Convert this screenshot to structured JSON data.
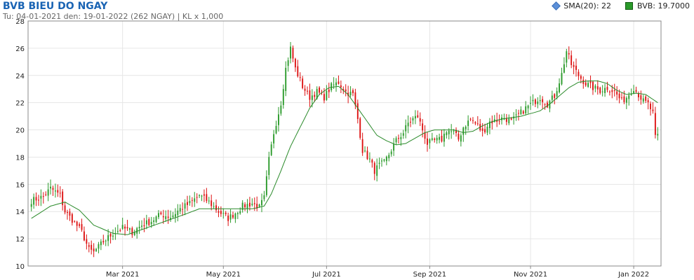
{
  "header": {
    "title": "BVB BIEU DO NGAY",
    "subtitle": "Tu: 04-01-2021 den: 19-01-2022 (262 NGAY) | KL x 1,000"
  },
  "legend": {
    "sma_label": "SMA(20): 22",
    "price_label": "BVB: 19.7000"
  },
  "colors": {
    "up": "#2a9a2a",
    "down": "#dd1111",
    "sma": "#2a8a2a",
    "grid": "#e6e6e6",
    "title": "#1a64b4"
  },
  "chart_data": {
    "type": "candlestick",
    "x_label": "",
    "y_label": "",
    "ylim": [
      10,
      28
    ],
    "yticks": [
      "10",
      "12",
      "14",
      "16",
      "18",
      "20",
      "22",
      "24",
      "26",
      "28"
    ],
    "xticks": [
      {
        "label": "Mar 2021",
        "index": 38
      },
      {
        "label": "May 2021",
        "index": 80
      },
      {
        "label": "Jul 2021",
        "index": 123
      },
      {
        "label": "Sep 2021",
        "index": 166
      },
      {
        "label": "Nov 2021",
        "index": 208
      },
      {
        "label": "Jan 2022",
        "index": 251
      }
    ],
    "n_days": 262,
    "close_anchors": [
      [
        0,
        14.8
      ],
      [
        5,
        15.1
      ],
      [
        8,
        15.7
      ],
      [
        12,
        15.2
      ],
      [
        14,
        14.0
      ],
      [
        18,
        13.2
      ],
      [
        21,
        12.5
      ],
      [
        24,
        11.2
      ],
      [
        26,
        11.0
      ],
      [
        30,
        11.8
      ],
      [
        34,
        12.4
      ],
      [
        38,
        12.8
      ],
      [
        42,
        12.5
      ],
      [
        46,
        13.0
      ],
      [
        50,
        13.3
      ],
      [
        54,
        13.8
      ],
      [
        58,
        13.6
      ],
      [
        62,
        14.2
      ],
      [
        66,
        14.6
      ],
      [
        70,
        15.2
      ],
      [
        74,
        14.7
      ],
      [
        78,
        14.0
      ],
      [
        82,
        13.5
      ],
      [
        85,
        13.9
      ],
      [
        88,
        14.4
      ],
      [
        92,
        14.6
      ],
      [
        95,
        14.3
      ],
      [
        97,
        15.0
      ],
      [
        99,
        17.8
      ],
      [
        101,
        19.8
      ],
      [
        104,
        22.0
      ],
      [
        106,
        24.5
      ],
      [
        108,
        26.0
      ],
      [
        110,
        24.5
      ],
      [
        113,
        23.2
      ],
      [
        116,
        22.4
      ],
      [
        119,
        22.8
      ],
      [
        122,
        22.4
      ],
      [
        125,
        23.2
      ],
      [
        128,
        23.5
      ],
      [
        131,
        22.8
      ],
      [
        134,
        22.6
      ],
      [
        136,
        20.8
      ],
      [
        138,
        18.5
      ],
      [
        141,
        17.8
      ],
      [
        143,
        17.0
      ],
      [
        145,
        17.4
      ],
      [
        147,
        17.6
      ],
      [
        149,
        18.2
      ],
      [
        152,
        19.2
      ],
      [
        155,
        19.8
      ],
      [
        157,
        20.5
      ],
      [
        159,
        20.8
      ],
      [
        161,
        21.0
      ],
      [
        163,
        20.0
      ],
      [
        165,
        19.0
      ],
      [
        168,
        19.2
      ],
      [
        171,
        19.3
      ],
      [
        173,
        20.0
      ],
      [
        176,
        19.8
      ],
      [
        178,
        19.3
      ],
      [
        180,
        20.2
      ],
      [
        183,
        20.8
      ],
      [
        186,
        20.3
      ],
      [
        188,
        19.8
      ],
      [
        191,
        20.6
      ],
      [
        194,
        20.7
      ],
      [
        197,
        20.9
      ],
      [
        200,
        20.6
      ],
      [
        203,
        21.1
      ],
      [
        206,
        21.6
      ],
      [
        209,
        22.0
      ],
      [
        212,
        22.4
      ],
      [
        215,
        21.9
      ],
      [
        218,
        22.5
      ],
      [
        221,
        24.1
      ],
      [
        223,
        25.8
      ],
      [
        225,
        24.8
      ],
      [
        228,
        24.0
      ],
      [
        231,
        23.4
      ],
      [
        234,
        23.1
      ],
      [
        237,
        22.9
      ],
      [
        240,
        23.1
      ],
      [
        243,
        22.8
      ],
      [
        246,
        22.1
      ],
      [
        248,
        22.4
      ],
      [
        251,
        23.1
      ],
      [
        253,
        22.6
      ],
      [
        255,
        22.1
      ],
      [
        257,
        21.9
      ],
      [
        259,
        21.2
      ],
      [
        260,
        19.4
      ],
      [
        261,
        19.7
      ]
    ],
    "sma_anchors": [
      [
        0,
        13.5
      ],
      [
        8,
        14.4
      ],
      [
        14,
        14.7
      ],
      [
        20,
        14.1
      ],
      [
        26,
        13.0
      ],
      [
        34,
        12.4
      ],
      [
        40,
        12.3
      ],
      [
        48,
        12.8
      ],
      [
        56,
        13.3
      ],
      [
        64,
        13.8
      ],
      [
        70,
        14.2
      ],
      [
        76,
        14.2
      ],
      [
        84,
        14.2
      ],
      [
        92,
        14.2
      ],
      [
        97,
        14.4
      ],
      [
        100,
        15.3
      ],
      [
        104,
        17.0
      ],
      [
        108,
        18.8
      ],
      [
        112,
        20.2
      ],
      [
        116,
        21.6
      ],
      [
        120,
        22.6
      ],
      [
        124,
        23.1
      ],
      [
        128,
        23.2
      ],
      [
        132,
        22.6
      ],
      [
        136,
        21.6
      ],
      [
        140,
        20.6
      ],
      [
        144,
        19.6
      ],
      [
        148,
        19.2
      ],
      [
        152,
        18.9
      ],
      [
        156,
        19.0
      ],
      [
        160,
        19.4
      ],
      [
        164,
        19.8
      ],
      [
        168,
        20.0
      ],
      [
        172,
        20.0
      ],
      [
        176,
        20.0
      ],
      [
        180,
        19.8
      ],
      [
        184,
        19.9
      ],
      [
        188,
        20.3
      ],
      [
        192,
        20.6
      ],
      [
        196,
        20.8
      ],
      [
        200,
        20.9
      ],
      [
        204,
        21.0
      ],
      [
        208,
        21.2
      ],
      [
        212,
        21.4
      ],
      [
        216,
        21.9
      ],
      [
        220,
        22.5
      ],
      [
        224,
        23.1
      ],
      [
        228,
        23.5
      ],
      [
        232,
        23.6
      ],
      [
        236,
        23.6
      ],
      [
        240,
        23.4
      ],
      [
        244,
        22.9
      ],
      [
        248,
        22.6
      ],
      [
        252,
        22.7
      ],
      [
        256,
        22.6
      ],
      [
        261,
        22.0
      ]
    ]
  }
}
